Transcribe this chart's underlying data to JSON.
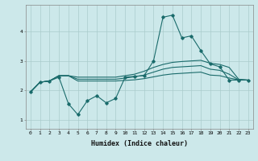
{
  "xlabel": "Humidex (Indice chaleur)",
  "bg_color": "#cce8ea",
  "grid_color": "#aacccc",
  "line_color": "#1a6b6b",
  "xlim": [
    -0.5,
    23.5
  ],
  "ylim": [
    0.7,
    4.9
  ],
  "yticks": [
    1,
    2,
    3,
    4
  ],
  "xticks": [
    0,
    1,
    2,
    3,
    4,
    5,
    6,
    7,
    8,
    9,
    10,
    11,
    12,
    13,
    14,
    15,
    16,
    17,
    18,
    19,
    20,
    21,
    22,
    23
  ],
  "line1_x": [
    0,
    1,
    2,
    3,
    4,
    5,
    6,
    7,
    8,
    9,
    10,
    11,
    12,
    13,
    14,
    15,
    16,
    17,
    18,
    19,
    20,
    21,
    22,
    23
  ],
  "line1_y": [
    1.95,
    2.28,
    2.32,
    2.45,
    1.55,
    1.18,
    1.65,
    1.82,
    1.58,
    1.73,
    2.45,
    2.48,
    2.5,
    3.0,
    4.48,
    4.55,
    3.78,
    3.85,
    3.35,
    2.9,
    2.8,
    2.35,
    2.35,
    2.35
  ],
  "line2_x": [
    0,
    1,
    2,
    3,
    4,
    5,
    6,
    7,
    8,
    9,
    10,
    11,
    12,
    13,
    14,
    15,
    16,
    17,
    18,
    19,
    20,
    21,
    22,
    23
  ],
  "line2_y": [
    1.95,
    2.28,
    2.32,
    2.5,
    2.5,
    2.45,
    2.45,
    2.45,
    2.45,
    2.45,
    2.5,
    2.55,
    2.65,
    2.78,
    2.88,
    2.95,
    2.98,
    3.0,
    3.02,
    2.92,
    2.88,
    2.78,
    2.38,
    2.35
  ],
  "line3_x": [
    0,
    1,
    2,
    3,
    4,
    5,
    6,
    7,
    8,
    9,
    10,
    11,
    12,
    13,
    14,
    15,
    16,
    17,
    18,
    19,
    20,
    21,
    22,
    23
  ],
  "line3_y": [
    1.95,
    2.28,
    2.32,
    2.5,
    2.5,
    2.38,
    2.38,
    2.38,
    2.38,
    2.38,
    2.42,
    2.46,
    2.52,
    2.62,
    2.72,
    2.78,
    2.8,
    2.82,
    2.84,
    2.72,
    2.68,
    2.55,
    2.36,
    2.35
  ],
  "line4_x": [
    0,
    1,
    2,
    3,
    4,
    5,
    6,
    7,
    8,
    9,
    10,
    11,
    12,
    13,
    14,
    15,
    16,
    17,
    18,
    19,
    20,
    21,
    22,
    23
  ],
  "line4_y": [
    1.95,
    2.28,
    2.32,
    2.5,
    2.5,
    2.32,
    2.32,
    2.32,
    2.32,
    2.32,
    2.34,
    2.36,
    2.4,
    2.46,
    2.52,
    2.56,
    2.58,
    2.6,
    2.62,
    2.52,
    2.5,
    2.42,
    2.36,
    2.35
  ]
}
